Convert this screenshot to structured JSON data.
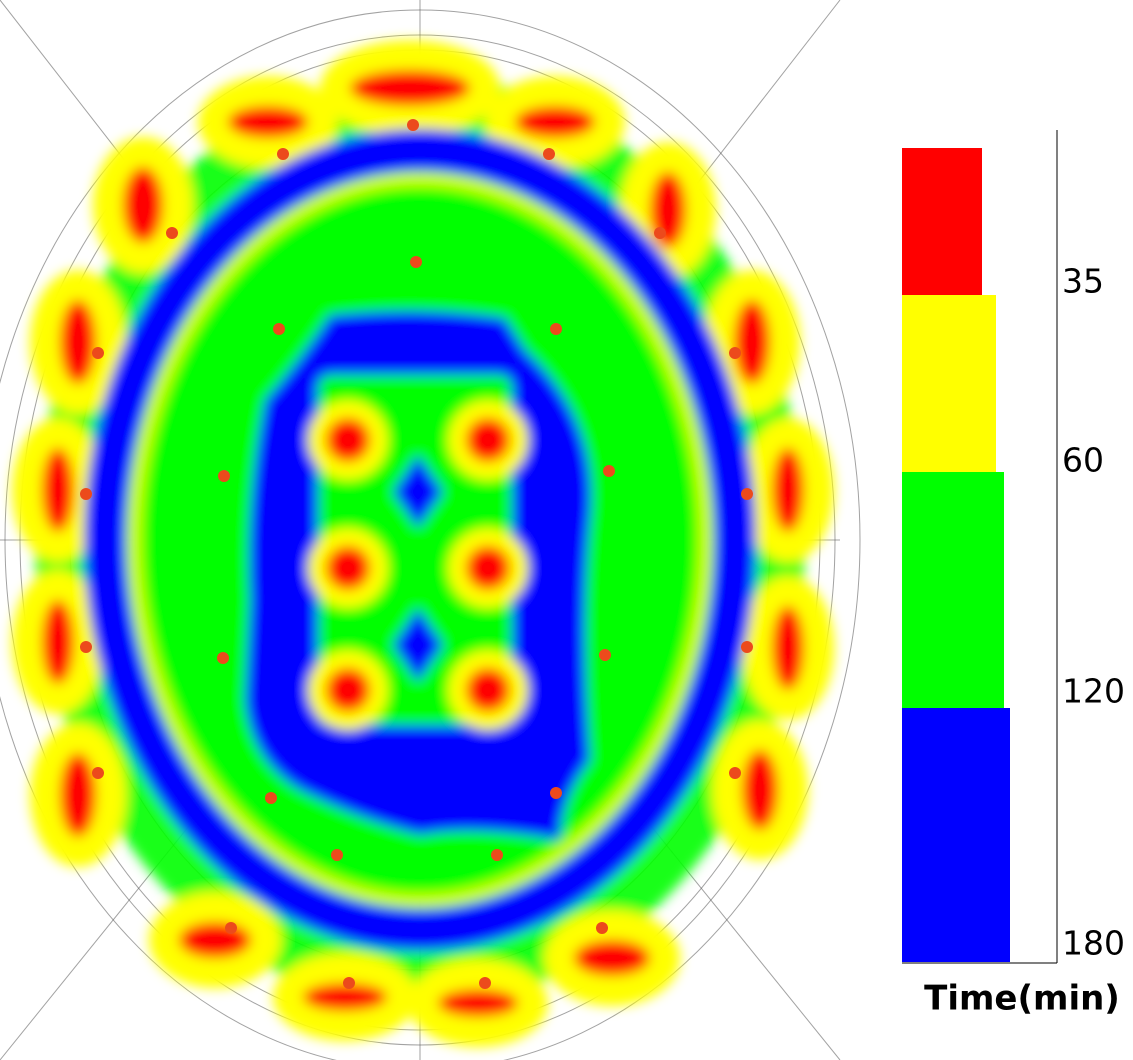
{
  "legend": {
    "title": "Time(min)",
    "ticks": [
      35,
      60,
      120,
      180
    ],
    "colors": [
      "#ff0000",
      "#ffff00",
      "#00ff00",
      "#0000ff"
    ]
  }
}
